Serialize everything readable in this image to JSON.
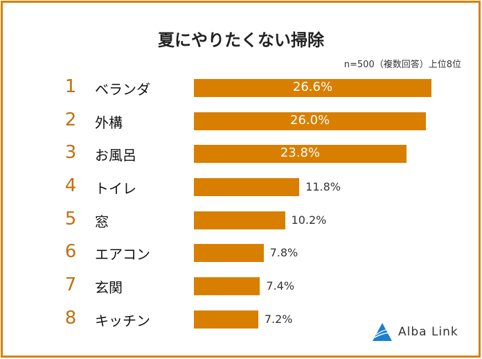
{
  "chart_data": {
    "type": "bar",
    "orientation": "horizontal",
    "title": "夏にやりたくない掃除",
    "subtitle": "n=500（複数回答）上位8位",
    "ranks": [
      "1",
      "2",
      "3",
      "4",
      "5",
      "6",
      "7",
      "8"
    ],
    "categories": [
      "ベランダ",
      "外構",
      "お風呂",
      "トイレ",
      "窓",
      "エアコン",
      "玄関",
      "キッチン"
    ],
    "values": [
      26.6,
      26.0,
      23.8,
      11.8,
      10.2,
      7.8,
      7.4,
      7.2
    ],
    "labels": [
      "26.6%",
      "26.0%",
      "23.8%",
      "11.8%",
      "10.2%",
      "7.8%",
      "7.4%",
      "7.2%"
    ],
    "unit": "%",
    "bar_color": "#d97f00",
    "grid": false
  },
  "logo": {
    "text": "Alba Link"
  }
}
